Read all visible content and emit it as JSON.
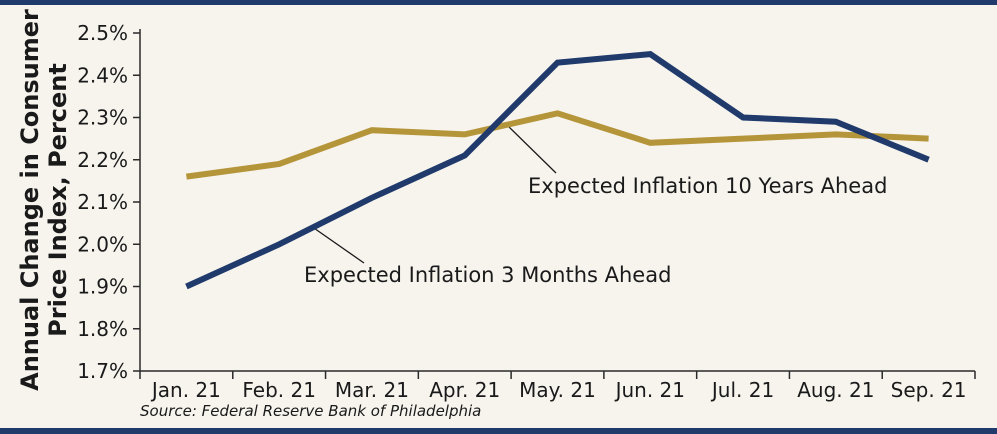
{
  "chart_data": {
    "type": "line",
    "categories": [
      "Jan. 21",
      "Feb. 21",
      "Mar. 21",
      "Apr. 21",
      "May. 21",
      "Jun. 21",
      "Jul. 21",
      "Aug. 21",
      "Sep. 21"
    ],
    "series": [
      {
        "name": "Expected Inflation 3 Months Ahead",
        "values": [
          1.9,
          2.0,
          2.11,
          2.21,
          2.43,
          2.45,
          2.3,
          2.29,
          2.2
        ],
        "color": "#1f3a6b"
      },
      {
        "name": "Expected Inflation 10 Years Ahead",
        "values": [
          2.16,
          2.19,
          2.27,
          2.26,
          2.31,
          2.24,
          2.25,
          2.26,
          2.25
        ],
        "color": "#b5953a"
      }
    ],
    "title": "",
    "xlabel": "",
    "ylabel": "Annual Change in Consumer Price Index, Percent",
    "ylabel_lines": [
      "Annual Change in Consumer",
      "Price Index, Percent"
    ],
    "ylim": [
      1.7,
      2.5
    ],
    "yticks": [
      "1.7%",
      "1.8%",
      "1.9%",
      "2.0%",
      "2.1%",
      "2.2%",
      "2.3%",
      "2.4%",
      "2.5%"
    ],
    "grid": false,
    "legend": "annotations",
    "source": "Source: Federal Reserve Bank of Philadelphia",
    "colors": {
      "background": "#f7f4ee",
      "border": "#1f3a6b",
      "axis": "#2a2a2a",
      "text": "#1a1a1a"
    }
  }
}
